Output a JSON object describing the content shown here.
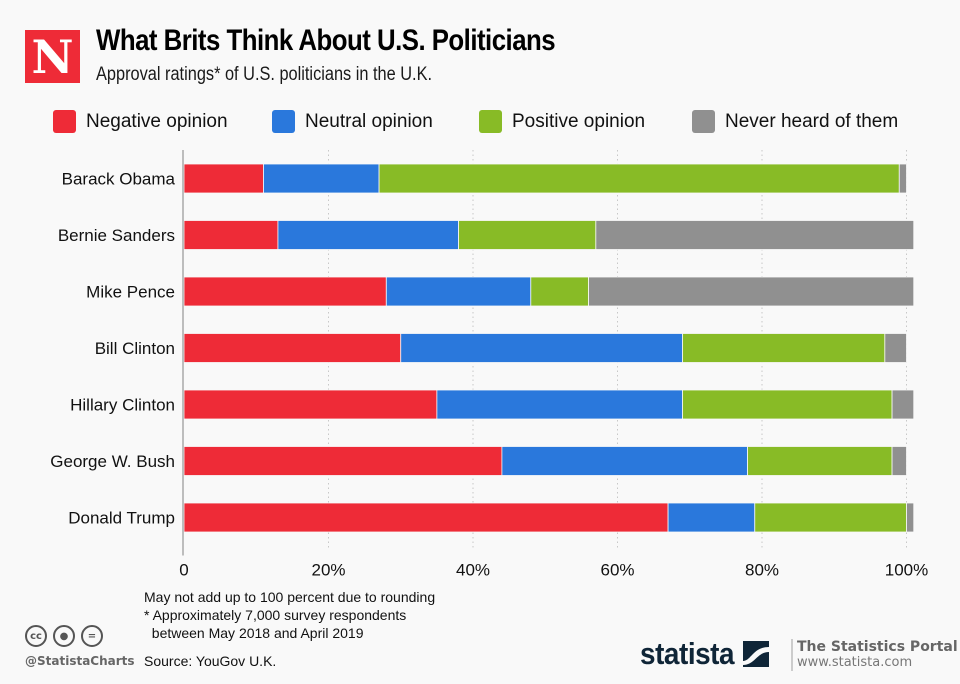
{
  "header": {
    "logo_letter": "N",
    "title": "What Brits Think About U.S. Politicians",
    "subtitle": "Approval ratings* of U.S. politicians in the U.K."
  },
  "colors": {
    "negative": "#ee2b37",
    "neutral": "#2a78dc",
    "positive": "#88bb26",
    "never_heard": "#909090",
    "brand_red": "#ee2b37",
    "statista_navy": "#0f2537"
  },
  "chart_data": {
    "type": "bar",
    "orientation": "horizontal",
    "stacked": true,
    "title": "What Brits Think About U.S. Politicians",
    "subtitle": "Approval ratings* of U.S. politicians in the U.K.",
    "xlabel": "",
    "ylabel": "",
    "xlim": [
      0,
      100
    ],
    "x_ticks": [
      0,
      20,
      40,
      60,
      80,
      100
    ],
    "x_tick_labels": [
      "0",
      "20%",
      "40%",
      "60%",
      "80%",
      "100%"
    ],
    "grid": "vertical dotted",
    "legend_position": "top",
    "categories": [
      "Barack Obama",
      "Bernie Sanders",
      "Mike Pence",
      "Bill Clinton",
      "Hillary Clinton",
      "George W. Bush",
      "Donald Trump"
    ],
    "series": [
      {
        "name": "Negative opinion",
        "color": "#ee2b37",
        "values": [
          11,
          13,
          28,
          30,
          35,
          44,
          67
        ]
      },
      {
        "name": "Neutral opinion",
        "color": "#2a78dc",
        "values": [
          16,
          25,
          20,
          39,
          34,
          34,
          12
        ]
      },
      {
        "name": "Positive opinion",
        "color": "#88bb26",
        "values": [
          72,
          19,
          8,
          28,
          29,
          20,
          21
        ]
      },
      {
        "name": "Never heard of them",
        "color": "#909090",
        "values": [
          1,
          44,
          45,
          3,
          3,
          2,
          1
        ]
      }
    ]
  },
  "footer": {
    "notes": [
      "May not add up to 100 percent due to rounding",
      "* Approximately 7,000 survey respondents",
      "  between May 2018 and April 2019"
    ],
    "source": "Source: YouGov U.K.",
    "cc_icons": [
      {
        "name": "cc-icon",
        "glyph": "cc"
      },
      {
        "name": "attribution-icon",
        "glyph": "●"
      },
      {
        "name": "no-derivatives-icon",
        "glyph": "="
      }
    ],
    "handle": "@StatistaCharts",
    "brand": "statista",
    "portal_title": "The Statistics Portal",
    "portal_url": "www.statista.com"
  }
}
